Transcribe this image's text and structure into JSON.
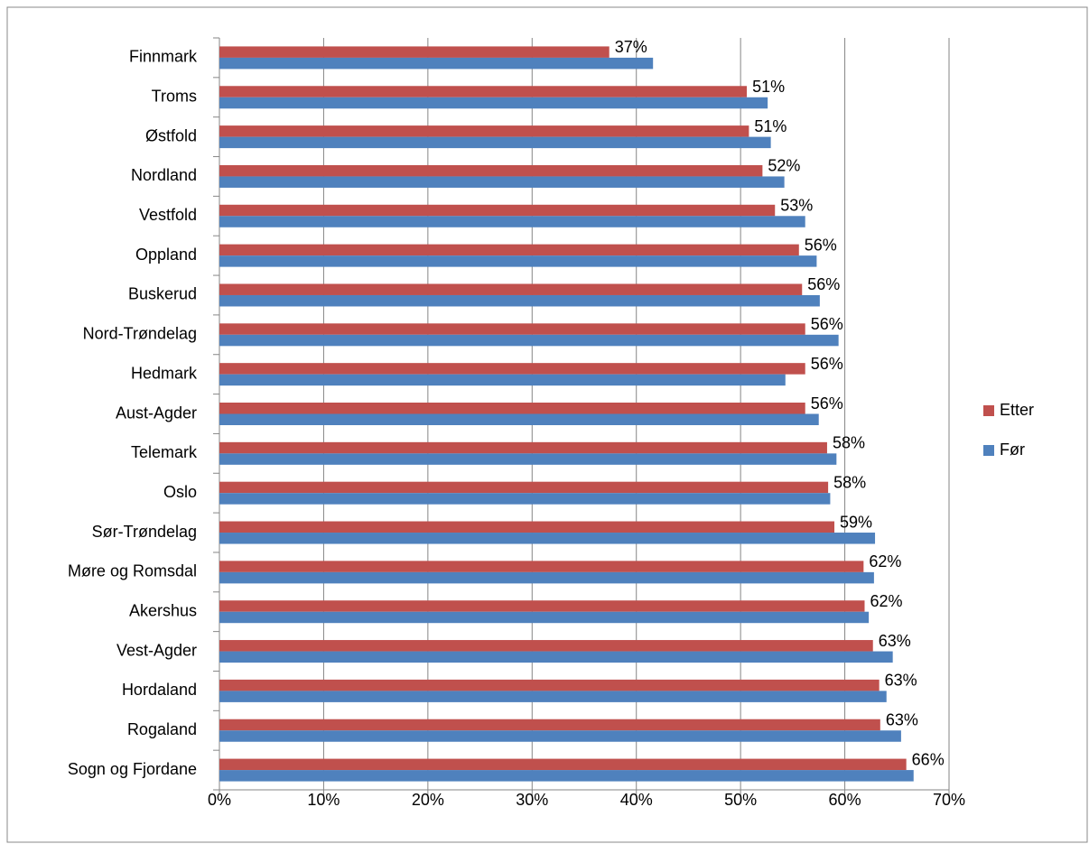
{
  "chart_data": {
    "type": "barh",
    "categories": [
      "Finnmark",
      "Troms",
      "Østfold",
      "Nordland",
      "Vestfold",
      "Oppland",
      "Buskerud",
      "Nord-Trøndelag",
      "Hedmark",
      "Aust-Agder",
      "Telemark",
      "Oslo",
      "Sør-Trøndelag",
      "Møre og Romsdal",
      "Akershus",
      "Vest-Agder",
      "Hordaland",
      "Rogaland",
      "Sogn og Fjordane"
    ],
    "series": [
      {
        "name": "Etter",
        "color": "#c0504d",
        "values": [
          37.4,
          50.6,
          50.8,
          52.1,
          53.3,
          55.6,
          55.9,
          56.2,
          56.2,
          56.2,
          58.3,
          58.4,
          59.0,
          61.8,
          61.9,
          62.7,
          63.3,
          63.4,
          65.9
        ],
        "value_labels": [
          "37%",
          "51%",
          "51%",
          "52%",
          "53%",
          "56%",
          "56%",
          "56%",
          "56%",
          "56%",
          "58%",
          "58%",
          "59%",
          "62%",
          "62%",
          "63%",
          "63%",
          "63%",
          "66%"
        ]
      },
      {
        "name": "Før",
        "color": "#4f81bd",
        "values": [
          41.6,
          52.6,
          52.9,
          54.2,
          56.2,
          57.3,
          57.6,
          59.4,
          54.3,
          57.5,
          59.2,
          58.6,
          62.9,
          62.8,
          62.3,
          64.6,
          64.0,
          65.4,
          66.6
        ]
      }
    ],
    "xlim": [
      0,
      70
    ],
    "xticks": [
      {
        "value": 0,
        "label": "0%"
      },
      {
        "value": 10,
        "label": "10%"
      },
      {
        "value": 20,
        "label": "20%"
      },
      {
        "value": 30,
        "label": "30%"
      },
      {
        "value": 40,
        "label": "40%"
      },
      {
        "value": 50,
        "label": "50%"
      },
      {
        "value": 60,
        "label": "60%"
      },
      {
        "value": 70,
        "label": "70%"
      }
    ],
    "grid": true,
    "legend": "right"
  }
}
